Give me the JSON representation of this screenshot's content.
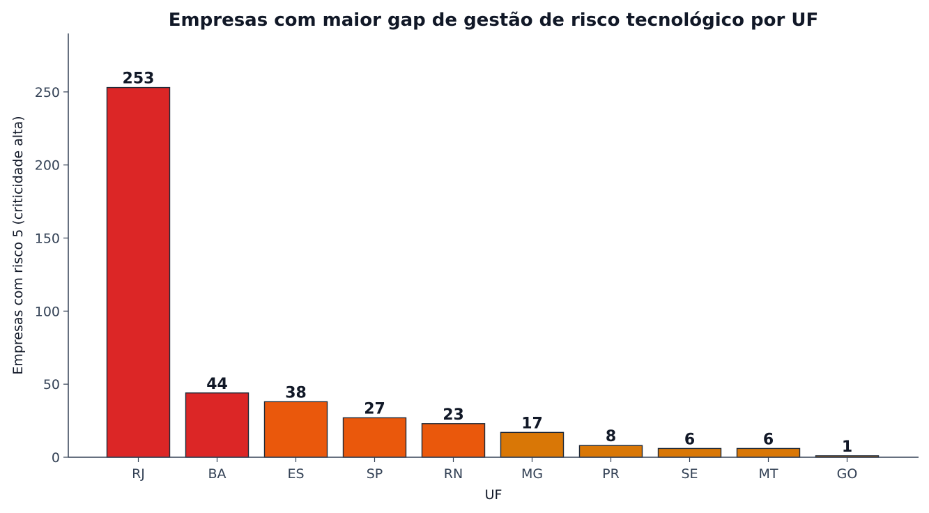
{
  "chart_data": {
    "type": "bar",
    "title": "Empresas com maior gap de gestão de risco tecnológico por UF",
    "xlabel": "UF",
    "ylabel": "Empresas com risco 5 (criticidade alta)",
    "categories": [
      "RJ",
      "BA",
      "ES",
      "SP",
      "RN",
      "MG",
      "PR",
      "SE",
      "MT",
      "GO"
    ],
    "values": [
      253,
      44,
      38,
      27,
      23,
      17,
      8,
      6,
      6,
      1
    ],
    "bar_colors": [
      "#dc2626",
      "#dc2626",
      "#ea580c",
      "#ea580c",
      "#ea580c",
      "#d97706",
      "#d97706",
      "#d97706",
      "#d97706",
      "#d97706"
    ],
    "ylim": [
      0,
      290
    ],
    "yticks": [
      0,
      50,
      100,
      150,
      200,
      250
    ],
    "grid": false,
    "legend": "none"
  }
}
